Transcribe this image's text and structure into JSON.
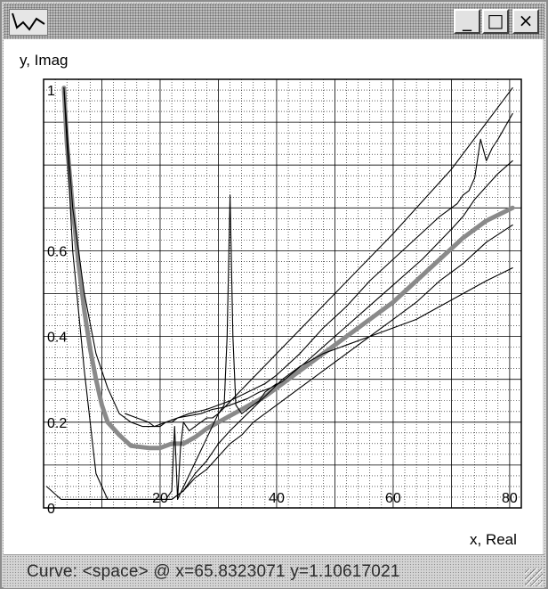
{
  "window": {
    "icon": "chart-curve-icon",
    "buttons": {
      "minimize": "_",
      "maximize": "□",
      "close": "×"
    }
  },
  "status_bar": {
    "text": "Curve: <space> @ x=65.8323071 y=1.10617021"
  },
  "chart_data": {
    "type": "line",
    "xlabel": "x, Real",
    "ylabel": "y, Imag",
    "xlim": [
      0,
      82
    ],
    "ylim": [
      0,
      1
    ],
    "x_ticks": [
      20,
      40,
      60,
      80
    ],
    "y_ticks": [
      0,
      0.2,
      0.4,
      0.6,
      1
    ],
    "y_tick_labels": [
      "0",
      "0.2",
      "0.4",
      "0.6",
      "1"
    ],
    "grid": true,
    "colors": {
      "thick": "#8a8a8a",
      "thin": "#000000",
      "grid": "#000000"
    },
    "series": [
      {
        "style": "thick",
        "x": [
          3.5,
          4,
          5,
          6,
          7,
          8,
          9,
          10,
          11,
          13,
          15,
          18,
          20,
          22,
          24,
          26,
          28,
          30,
          32,
          34,
          36,
          38,
          40,
          44,
          48,
          52,
          56,
          60,
          64,
          68,
          72,
          76,
          80.5
        ],
        "y": [
          0.98,
          0.85,
          0.7,
          0.57,
          0.46,
          0.37,
          0.3,
          0.24,
          0.2,
          0.17,
          0.145,
          0.14,
          0.14,
          0.15,
          0.15,
          0.165,
          0.185,
          0.2,
          0.215,
          0.23,
          0.245,
          0.26,
          0.28,
          0.32,
          0.36,
          0.4,
          0.44,
          0.48,
          0.53,
          0.58,
          0.63,
          0.67,
          0.7
        ]
      },
      {
        "style": "thin",
        "x": [
          3.5,
          5,
          7,
          9,
          11,
          13,
          15,
          17,
          19,
          21,
          23,
          25,
          27,
          29,
          31,
          33,
          35,
          37,
          39,
          41,
          45,
          50,
          55,
          60,
          65,
          70,
          72,
          74,
          76,
          78,
          80.5
        ],
        "y": [
          0.98,
          0.7,
          0.5,
          0.36,
          0.28,
          0.22,
          0.2,
          0.19,
          0.19,
          0.2,
          0.21,
          0.215,
          0.22,
          0.23,
          0.235,
          0.245,
          0.255,
          0.27,
          0.28,
          0.295,
          0.34,
          0.4,
          0.46,
          0.52,
          0.58,
          0.65,
          0.68,
          0.72,
          0.75,
          0.78,
          0.81
        ]
      },
      {
        "style": "thin",
        "x": [
          0.5,
          3,
          5,
          7,
          9,
          11,
          13,
          15,
          17,
          20,
          22,
          24,
          26,
          28,
          30,
          32,
          34,
          36,
          38,
          40,
          44,
          48,
          52,
          56,
          60,
          64,
          68,
          72,
          76,
          80.5
        ],
        "y": [
          0.05,
          0.02,
          0.02,
          0.02,
          0.02,
          0.02,
          0.02,
          0.02,
          0.02,
          0.02,
          0.02,
          0.04,
          0.07,
          0.09,
          0.12,
          0.15,
          0.17,
          0.2,
          0.22,
          0.24,
          0.28,
          0.32,
          0.36,
          0.4,
          0.44,
          0.48,
          0.53,
          0.57,
          0.62,
          0.66
        ]
      },
      {
        "style": "thin",
        "x": [
          3.5,
          5,
          7,
          9,
          11,
          12,
          13,
          15,
          17,
          19,
          20,
          21,
          22,
          24,
          26,
          28,
          30,
          32,
          35,
          38,
          41,
          44,
          48,
          52,
          56,
          60,
          64,
          68,
          72,
          76,
          80.5
        ],
        "y": [
          0.98,
          0.6,
          0.32,
          0.08,
          0.02,
          0.02,
          0.02,
          0.02,
          0.02,
          0.02,
          0.02,
          0.02,
          0.02,
          0.04,
          0.08,
          0.11,
          0.15,
          0.18,
          0.22,
          0.26,
          0.3,
          0.33,
          0.36,
          0.38,
          0.4,
          0.42,
          0.44,
          0.47,
          0.5,
          0.53,
          0.56
        ]
      },
      {
        "style": "thin",
        "x": [
          14,
          16,
          18,
          19,
          20,
          21,
          22,
          23,
          25,
          28,
          30,
          32,
          35,
          38,
          40,
          44,
          48,
          52,
          56,
          60,
          64,
          68,
          71,
          72,
          73,
          74,
          75,
          76,
          77,
          78,
          80.5
        ],
        "y": [
          0.22,
          0.21,
          0.2,
          0.19,
          0.19,
          0.2,
          0.2,
          0.21,
          0.22,
          0.23,
          0.24,
          0.25,
          0.27,
          0.29,
          0.31,
          0.36,
          0.42,
          0.47,
          0.53,
          0.58,
          0.63,
          0.68,
          0.71,
          0.73,
          0.74,
          0.77,
          0.86,
          0.81,
          0.84,
          0.86,
          0.92
        ]
      },
      {
        "style": "thin",
        "x": [
          21,
          22,
          22.5,
          23,
          23.5,
          24,
          25,
          26,
          27,
          28,
          29,
          30,
          31,
          31.5,
          32,
          32.5,
          33,
          34,
          35,
          36,
          37,
          38,
          40
        ],
        "y": [
          0.02,
          0.04,
          0.19,
          0.02,
          0.14,
          0.2,
          0.18,
          0.19,
          0.2,
          0.21,
          0.21,
          0.22,
          0.24,
          0.4,
          0.73,
          0.4,
          0.24,
          0.22,
          0.23,
          0.24,
          0.25,
          0.27,
          0.29
        ]
      },
      {
        "style": "thin",
        "x": [
          23,
          30,
          40,
          50,
          60,
          70,
          80.5
        ],
        "y": [
          0.02,
          0.22,
          0.36,
          0.5,
          0.64,
          0.79,
          0.98
        ]
      }
    ]
  }
}
